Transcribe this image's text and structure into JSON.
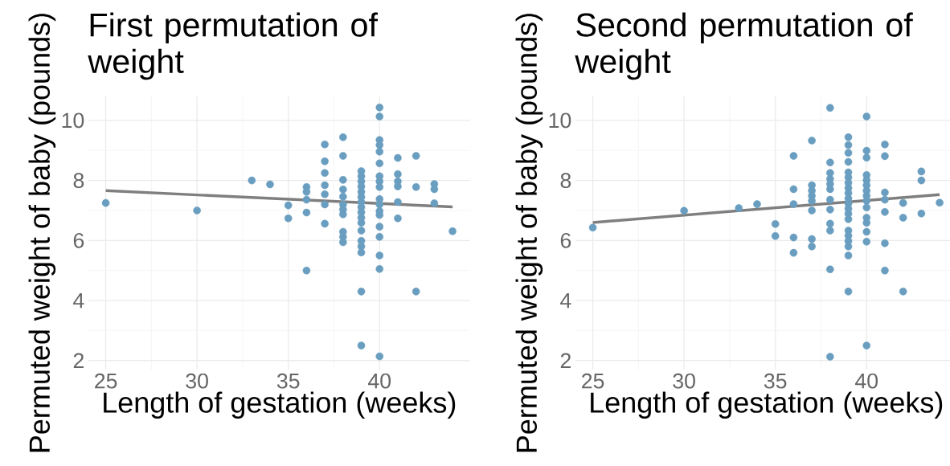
{
  "chart_data": [
    {
      "type": "scatter",
      "title": "First permutation of weight",
      "xlabel": "Length of gestation (weeks)",
      "ylabel": "Permuted weight of baby (pounds)",
      "xlim": [
        24.05,
        44.95
      ],
      "ylim": [
        1.7,
        10.8
      ],
      "xticks": [
        25,
        30,
        35,
        40
      ],
      "yticks": [
        2,
        4,
        6,
        8,
        10
      ],
      "grid": true,
      "series": [
        {
          "type": "scatter",
          "marker": "circle",
          "color": "#6a9ec0",
          "x": [
            25,
            30,
            33,
            34,
            35,
            35,
            36,
            36,
            36,
            36,
            36,
            37,
            37,
            37,
            37,
            37,
            37,
            37,
            38,
            38,
            38,
            38,
            38,
            38,
            38,
            38,
            38,
            38,
            38,
            39,
            39,
            39,
            39,
            39,
            39,
            39,
            39,
            39,
            39,
            39,
            39,
            39,
            39,
            39,
            39,
            39,
            40,
            40,
            40,
            40,
            40,
            40,
            40,
            40,
            40,
            40,
            40,
            40,
            40,
            40,
            40,
            40,
            40,
            40,
            41,
            41,
            41,
            41,
            41,
            41,
            42,
            42,
            42,
            43,
            43,
            43,
            44
          ],
          "values": [
            7.25,
            7.0,
            8.0,
            7.87,
            7.17,
            6.74,
            7.78,
            7.62,
            7.36,
            6.93,
            5.0,
            9.2,
            8.64,
            8.25,
            7.84,
            7.54,
            7.2,
            6.56,
            9.44,
            8.82,
            8.02,
            7.7,
            7.46,
            7.2,
            7.03,
            6.87,
            6.29,
            6.12,
            5.94,
            8.31,
            8.14,
            7.97,
            7.8,
            7.62,
            7.45,
            7.28,
            7.11,
            6.94,
            6.76,
            6.59,
            6.33,
            5.99,
            5.8,
            5.6,
            4.3,
            2.5,
            10.43,
            10.13,
            9.35,
            9.18,
            8.96,
            8.57,
            8.14,
            7.97,
            7.78,
            7.38,
            7.2,
            6.98,
            6.85,
            6.46,
            6.12,
            5.5,
            5.05,
            2.14,
            8.75,
            8.21,
            7.97,
            7.8,
            7.28,
            6.74,
            8.82,
            7.78,
            4.3,
            7.88,
            7.71,
            7.24,
            6.31
          ]
        },
        {
          "type": "line",
          "marker": "none",
          "color": "#7f7f7f",
          "x": [
            25,
            44
          ],
          "values": [
            7.66,
            7.12
          ]
        }
      ]
    },
    {
      "type": "scatter",
      "title": "Second permutation of weight",
      "xlabel": "Length of gestation (weeks)",
      "ylabel": "Permuted weight of baby (pounds)",
      "xlim": [
        24.05,
        44.95
      ],
      "ylim": [
        1.7,
        10.8
      ],
      "xticks": [
        25,
        30,
        35,
        40
      ],
      "yticks": [
        2,
        4,
        6,
        8,
        10
      ],
      "grid": true,
      "series": [
        {
          "type": "scatter",
          "marker": "circle",
          "color": "#6a9ec0",
          "x": [
            25,
            30,
            33,
            34,
            35,
            35,
            36,
            36,
            36,
            36,
            36,
            37,
            37,
            37,
            37,
            37,
            37,
            37,
            37,
            38,
            38,
            38,
            38,
            38,
            38,
            38,
            38,
            38,
            38,
            38,
            38,
            39,
            39,
            39,
            39,
            39,
            39,
            39,
            39,
            39,
            39,
            39,
            39,
            39,
            39,
            39,
            39,
            39,
            39,
            39,
            39,
            40,
            40,
            40,
            40,
            40,
            40,
            40,
            40,
            40,
            40,
            40,
            40,
            40,
            40,
            40,
            41,
            41,
            41,
            41,
            41,
            41,
            41,
            42,
            42,
            42,
            43,
            43,
            43,
            44
          ],
          "values": [
            6.43,
            6.99,
            7.08,
            7.21,
            6.55,
            6.15,
            8.82,
            7.71,
            7.21,
            6.1,
            5.59,
            9.33,
            7.84,
            7.66,
            7.49,
            7.32,
            7.0,
            6.05,
            5.8,
            10.42,
            8.6,
            8.25,
            8.05,
            7.88,
            7.71,
            7.36,
            7.03,
            6.56,
            6.33,
            5.04,
            2.13,
            9.44,
            9.18,
            8.92,
            8.62,
            8.27,
            8.1,
            7.92,
            7.75,
            7.58,
            7.4,
            7.23,
            7.06,
            6.89,
            6.71,
            6.33,
            6.16,
            5.98,
            5.8,
            5.5,
            4.3,
            10.13,
            8.99,
            8.76,
            8.18,
            8.01,
            7.84,
            7.66,
            7.49,
            7.32,
            7.1,
            6.76,
            6.59,
            6.29,
            5.96,
            2.5,
            9.2,
            8.81,
            7.6,
            7.36,
            6.95,
            5.91,
            5.0,
            7.25,
            6.76,
            4.3,
            8.3,
            8.0,
            6.9,
            7.26
          ]
        },
        {
          "type": "line",
          "marker": "none",
          "color": "#7f7f7f",
          "x": [
            25,
            44
          ],
          "values": [
            6.6,
            7.53
          ]
        }
      ]
    }
  ]
}
